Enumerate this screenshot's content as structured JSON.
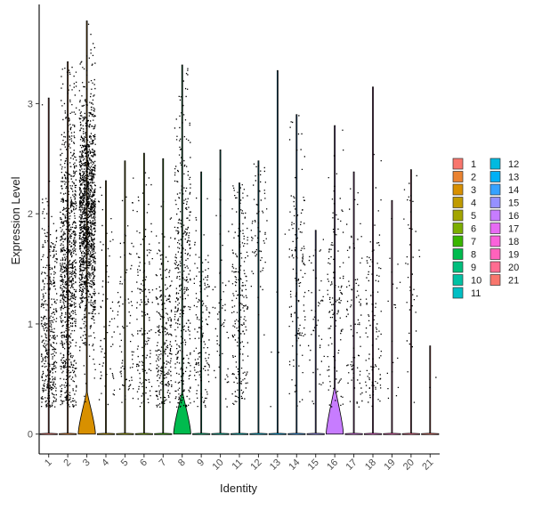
{
  "chart_data": {
    "type": "violin",
    "xlabel": "Identity",
    "ylabel": "Expression Level",
    "categories": [
      "1",
      "2",
      "3",
      "4",
      "5",
      "6",
      "7",
      "8",
      "9",
      "10",
      "11",
      "12",
      "13",
      "14",
      "15",
      "16",
      "17",
      "18",
      "19",
      "20",
      "21"
    ],
    "ylim": [
      -0.18,
      3.9
    ],
    "y_ticks": [
      0,
      1,
      2,
      3
    ],
    "y_tick_labels": [
      "0",
      "1",
      "2",
      "3"
    ],
    "legend_position": "right",
    "series": [
      {
        "name": "1",
        "color": "#F8766D",
        "max": 3.05,
        "dots": 420,
        "mean": 0.9,
        "spread": 0.55,
        "violin_height": 0.0
      },
      {
        "name": "2",
        "color": "#EA8331",
        "max": 3.38,
        "dots": 950,
        "mean": 1.5,
        "spread": 0.75,
        "violin_height": 0.0
      },
      {
        "name": "3",
        "color": "#D89000",
        "max": 3.75,
        "dots": 1400,
        "mean": 2.0,
        "spread": 0.55,
        "violin_height": 0.38
      },
      {
        "name": "4",
        "color": "#C09B00",
        "max": 2.3,
        "dots": 70,
        "mean": 1.0,
        "spread": 0.6,
        "violin_height": 0.0
      },
      {
        "name": "5",
        "color": "#A3A500",
        "max": 2.48,
        "dots": 90,
        "mean": 1.1,
        "spread": 0.6,
        "violin_height": 0.0
      },
      {
        "name": "6",
        "color": "#7CAE00",
        "max": 2.55,
        "dots": 160,
        "mean": 1.0,
        "spread": 0.6,
        "violin_height": 0.0
      },
      {
        "name": "7",
        "color": "#39B600",
        "max": 2.5,
        "dots": 260,
        "mean": 0.9,
        "spread": 0.5,
        "violin_height": 0.0
      },
      {
        "name": "8",
        "color": "#00BB4E",
        "max": 3.35,
        "dots": 380,
        "mean": 1.5,
        "spread": 0.8,
        "violin_height": 0.38
      },
      {
        "name": "9",
        "color": "#00BF7D",
        "max": 2.38,
        "dots": 150,
        "mean": 0.9,
        "spread": 0.55,
        "violin_height": 0.0
      },
      {
        "name": "10",
        "color": "#00C1A3",
        "max": 2.58,
        "dots": 55,
        "mean": 1.2,
        "spread": 0.6,
        "violin_height": 0.0
      },
      {
        "name": "11",
        "color": "#00BFC4",
        "max": 2.28,
        "dots": 220,
        "mean": 1.1,
        "spread": 0.55,
        "violin_height": 0.0
      },
      {
        "name": "12",
        "color": "#00BAE0",
        "max": 2.48,
        "dots": 70,
        "mean": 1.9,
        "spread": 0.35,
        "violin_height": 0.0
      },
      {
        "name": "13",
        "color": "#00B0F6",
        "max": 3.3,
        "dots": 5,
        "mean": 0.8,
        "spread": 0.6,
        "violin_height": 0.0
      },
      {
        "name": "14",
        "color": "#35A2FF",
        "max": 2.9,
        "dots": 140,
        "mean": 1.4,
        "spread": 0.6,
        "violin_height": 0.0
      },
      {
        "name": "15",
        "color": "#9590FF",
        "max": 1.85,
        "dots": 50,
        "mean": 1.0,
        "spread": 0.5,
        "violin_height": 0.0
      },
      {
        "name": "16",
        "color": "#C77CFF",
        "max": 2.8,
        "dots": 130,
        "mean": 1.2,
        "spread": 0.6,
        "violin_height": 0.42
      },
      {
        "name": "17",
        "color": "#E76BF3",
        "max": 2.38,
        "dots": 90,
        "mean": 1.0,
        "spread": 0.6,
        "violin_height": 0.0
      },
      {
        "name": "18",
        "color": "#FA62DB",
        "max": 3.15,
        "dots": 110,
        "mean": 1.0,
        "spread": 0.6,
        "violin_height": 0.0
      },
      {
        "name": "19",
        "color": "#FF62BC",
        "max": 2.12,
        "dots": 20,
        "mean": 1.0,
        "spread": 0.6,
        "violin_height": 0.0
      },
      {
        "name": "20",
        "color": "#FF6C91",
        "max": 2.4,
        "dots": 40,
        "mean": 1.7,
        "spread": 0.55,
        "violin_height": 0.0
      },
      {
        "name": "21",
        "color": "#F8766D",
        "max": 0.8,
        "dots": 2,
        "mean": 0.5,
        "spread": 0.1,
        "violin_height": 0.0
      }
    ]
  }
}
